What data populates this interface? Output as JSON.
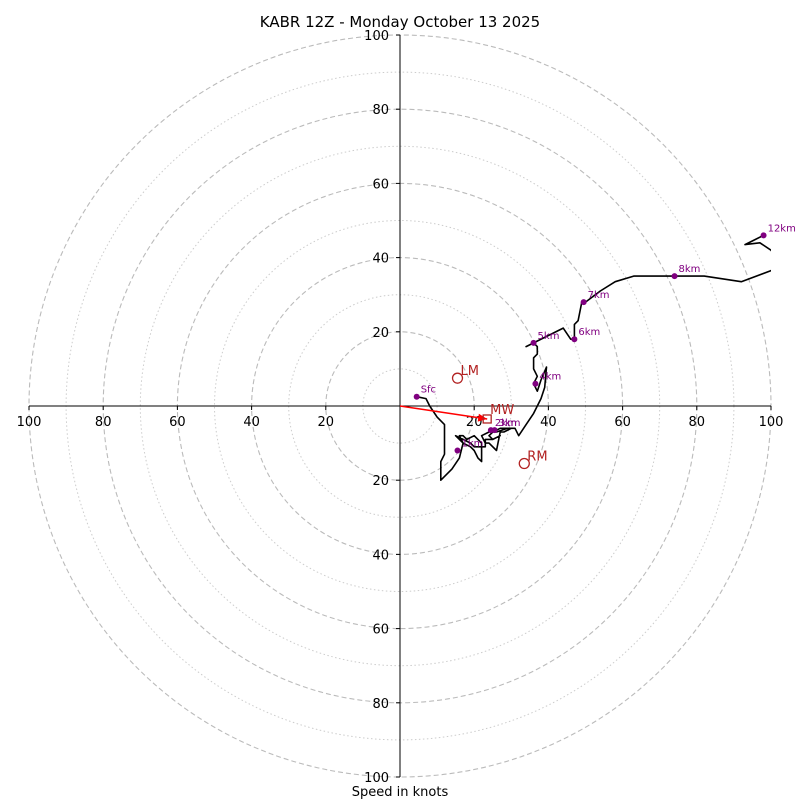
{
  "chart_data": {
    "type": "hodograph",
    "title": "KABR 12Z - Monday October 13 2025",
    "xlabel": "Speed in knots",
    "ylabel": "",
    "xlim": [
      -100,
      100
    ],
    "ylim": [
      -100,
      100
    ],
    "grid": true,
    "rings_dashed": [
      20,
      40,
      60,
      80,
      100
    ],
    "rings_dotted": [
      10,
      30,
      50,
      70,
      90
    ],
    "x_tick_labels": [
      "100",
      "80",
      "60",
      "40",
      "20",
      "20",
      "40",
      "60",
      "80",
      "100"
    ],
    "x_tick_values": [
      -100,
      -80,
      -60,
      -40,
      -20,
      20,
      40,
      60,
      80,
      100
    ],
    "y_tick_labels": [
      "100",
      "80",
      "60",
      "40",
      "20",
      "20",
      "40",
      "60",
      "80",
      "100"
    ],
    "y_tick_values": [
      100,
      80,
      60,
      40,
      20,
      -20,
      -40,
      -60,
      -80,
      -100
    ],
    "trace": [
      [
        4.5,
        2.5
      ],
      [
        7,
        2
      ],
      [
        8,
        0
      ],
      [
        10,
        -3
      ],
      [
        12,
        -5
      ],
      [
        12,
        -13
      ],
      [
        11,
        -15
      ],
      [
        11,
        -20
      ],
      [
        14,
        -17
      ],
      [
        16,
        -14
      ],
      [
        17,
        -10
      ],
      [
        16,
        -8
      ],
      [
        17,
        -8
      ],
      [
        18,
        -9
      ],
      [
        20,
        -8
      ],
      [
        21,
        -9
      ],
      [
        22,
        -10
      ],
      [
        22,
        -13
      ],
      [
        22,
        -15
      ],
      [
        21,
        -14
      ],
      [
        20,
        -12
      ],
      [
        19,
        -11
      ],
      [
        17,
        -10
      ],
      [
        16,
        -9
      ],
      [
        15,
        -8
      ],
      [
        17,
        -9
      ],
      [
        19,
        -10
      ],
      [
        20,
        -11
      ],
      [
        22,
        -11
      ],
      [
        23,
        -11
      ],
      [
        23,
        -9
      ],
      [
        25,
        -9
      ],
      [
        27,
        -8
      ],
      [
        25,
        -9
      ],
      [
        24,
        -8
      ],
      [
        25,
        -7
      ],
      [
        27,
        -6
      ],
      [
        28,
        -6
      ],
      [
        30,
        -6
      ],
      [
        28,
        -7
      ],
      [
        27,
        -7
      ],
      [
        26,
        -12
      ],
      [
        24,
        -10
      ],
      [
        23,
        -10
      ],
      [
        22,
        -8
      ],
      [
        24,
        -7
      ],
      [
        26,
        -7
      ],
      [
        29,
        -6
      ],
      [
        31,
        -6
      ],
      [
        32,
        -8
      ],
      [
        34,
        -5
      ],
      [
        36,
        -2
      ],
      [
        37,
        0
      ],
      [
        38,
        2
      ],
      [
        39,
        5
      ],
      [
        39.5,
        10.5
      ],
      [
        38,
        7
      ],
      [
        37,
        4
      ],
      [
        36,
        6
      ],
      [
        37,
        8
      ],
      [
        36,
        10
      ],
      [
        36,
        13
      ],
      [
        37,
        14
      ],
      [
        37,
        16
      ],
      [
        36,
        17
      ],
      [
        34,
        16
      ],
      [
        36,
        17
      ],
      [
        40,
        19
      ],
      [
        44,
        21
      ],
      [
        46,
        18
      ],
      [
        47,
        18
      ],
      [
        47,
        22
      ],
      [
        48,
        23
      ],
      [
        49,
        28
      ],
      [
        50,
        28
      ],
      [
        54,
        31
      ],
      [
        58,
        33.5
      ],
      [
        63,
        35
      ],
      [
        74,
        35
      ],
      [
        82,
        35
      ],
      [
        92,
        33.5
      ],
      [
        100,
        36.5
      ],
      [
        103,
        37
      ],
      [
        102,
        39
      ],
      [
        100,
        42
      ],
      [
        97,
        44
      ],
      [
        93,
        43.5
      ],
      [
        95,
        44.5
      ],
      [
        98,
        46
      ]
    ],
    "height_markers": [
      {
        "label": "Sfc",
        "u": 4.5,
        "v": 2.5
      },
      {
        "label": "1km",
        "u": 15.5,
        "v": -12
      },
      {
        "label": "2km",
        "u": 24.5,
        "v": -6.5
      },
      {
        "label": "3km",
        "u": 25.5,
        "v": -6.5
      },
      {
        "label": "4km",
        "u": 36.5,
        "v": 6
      },
      {
        "label": "5km",
        "u": 36,
        "v": 17
      },
      {
        "label": "6km",
        "u": 47,
        "v": 18
      },
      {
        "label": "7km",
        "u": 49.5,
        "v": 28
      },
      {
        "label": "8km",
        "u": 74,
        "v": 35
      },
      {
        "label": "12km",
        "u": 98,
        "v": 46
      }
    ],
    "storm_motion": [
      {
        "label": "LM",
        "u": 15.5,
        "v": 7.5
      },
      {
        "label": "MW",
        "u": 23.5,
        "v": -3.5
      },
      {
        "label": "RM",
        "u": 33.5,
        "v": -15.5
      }
    ],
    "shear_vector": {
      "from": [
        0,
        0
      ],
      "to": [
        23.5,
        -3.5
      ]
    },
    "colors": {
      "trace": "#000000",
      "markers": "#800080",
      "storm_motion": "#b22222",
      "shear_vector": "#ff0000",
      "grid": "#bbbbbb",
      "axes": "#000000"
    }
  }
}
